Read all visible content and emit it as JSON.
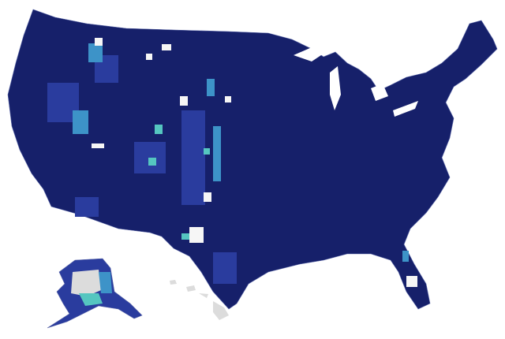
{
  "map": {
    "colors": {
      "base": "#16206a",
      "mid": "#2a3c9e",
      "light": "#3d93c8",
      "teal": "#55c6c0",
      "pale": "#f6f6f6",
      "none": "#dcdcdc",
      "border": "#5a66a8"
    }
  }
}
